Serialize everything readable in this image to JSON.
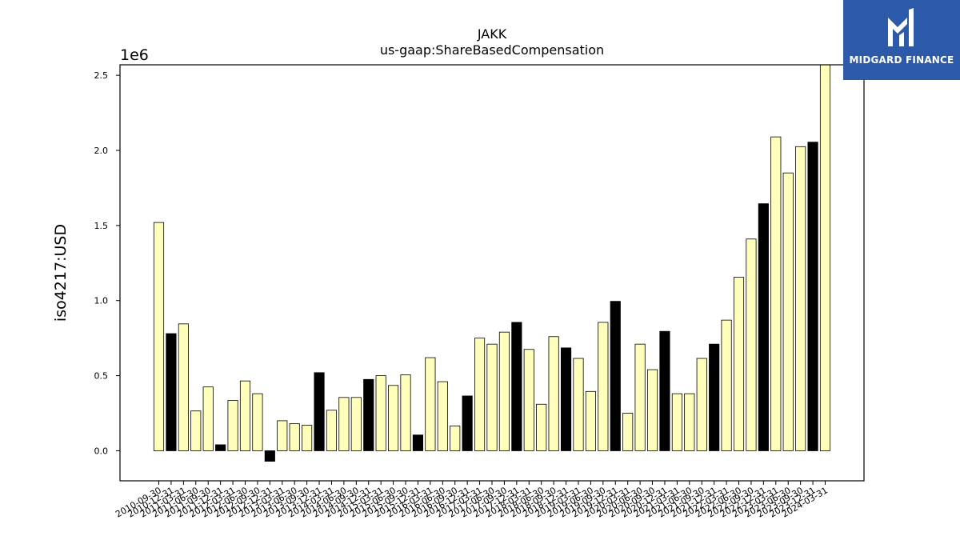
{
  "chart_data": {
    "type": "bar",
    "title": "JAKK",
    "subtitle": "us-gaap:ShareBasedCompensation",
    "ylabel": "iso4217:USD",
    "xlabel": "",
    "y_offset_label": "1e6",
    "ylim": [
      -200000,
      2570000
    ],
    "yticks": [
      0,
      500000,
      1000000,
      1500000,
      2000000,
      2500000
    ],
    "ytick_labels": [
      "0.0",
      "0.5",
      "1.0",
      "1.5",
      "2.0",
      "2.5"
    ],
    "grid": false,
    "colors": {
      "light": "#ffffbb",
      "dark": "#000000",
      "edge": "#000000"
    },
    "categories": [
      "2010-09-30",
      "2010-12-31",
      "2011-03-31",
      "2011-06-30",
      "2011-09-30",
      "2011-12-31",
      "2012-03-31",
      "2012-06-30",
      "2012-09-30",
      "2012-12-31",
      "2013-03-31",
      "2013-06-30",
      "2013-09-30",
      "2013-12-31",
      "2014-03-31",
      "2014-06-30",
      "2014-09-30",
      "2014-12-31",
      "2015-03-31",
      "2015-06-30",
      "2015-09-30",
      "2015-12-31",
      "2016-03-31",
      "2016-06-30",
      "2016-09-30",
      "2016-12-31",
      "2017-03-31",
      "2017-06-30",
      "2017-09-30",
      "2017-12-31",
      "2018-03-31",
      "2018-06-30",
      "2018-09-30",
      "2018-12-31",
      "2019-03-31",
      "2019-06-30",
      "2019-09-30",
      "2019-12-31",
      "2020-03-31",
      "2020-06-30",
      "2020-09-30",
      "2020-12-31",
      "2021-03-31",
      "2021-06-30",
      "2021-09-30",
      "2021-12-31",
      "2022-03-31",
      "2022-06-30",
      "2022-09-30",
      "2022-12-31",
      "2023-03-31",
      "2023-06-30",
      "2023-09-30",
      "2023-12-31",
      "2024-03-31"
    ],
    "values": [
      1520000,
      780000,
      845000,
      265000,
      425000,
      40000,
      335000,
      465000,
      380000,
      -70000,
      200000,
      180000,
      170000,
      520000,
      270000,
      355000,
      355000,
      475000,
      500000,
      435000,
      505000,
      105000,
      620000,
      460000,
      165000,
      365000,
      750000,
      710000,
      790000,
      855000,
      675000,
      310000,
      760000,
      685000,
      615000,
      395000,
      855000,
      995000,
      250000,
      710000,
      540000,
      795000,
      380000,
      380000,
      615000,
      710000,
      870000,
      1155000,
      1410000,
      1645000,
      2090000,
      1850000,
      2025000,
      2055000,
      2610000
    ],
    "dark_flags": [
      0,
      1,
      0,
      0,
      0,
      1,
      0,
      0,
      0,
      1,
      0,
      0,
      0,
      1,
      0,
      0,
      0,
      1,
      0,
      0,
      0,
      1,
      0,
      0,
      0,
      1,
      0,
      0,
      0,
      1,
      0,
      0,
      0,
      1,
      0,
      0,
      0,
      1,
      0,
      0,
      0,
      1,
      0,
      0,
      0,
      1,
      0,
      0,
      0,
      1,
      0,
      0,
      0,
      1,
      0
    ]
  },
  "logo": {
    "text": "MIDGARD FINANCE",
    "icon": "midgard-logo-icon"
  }
}
